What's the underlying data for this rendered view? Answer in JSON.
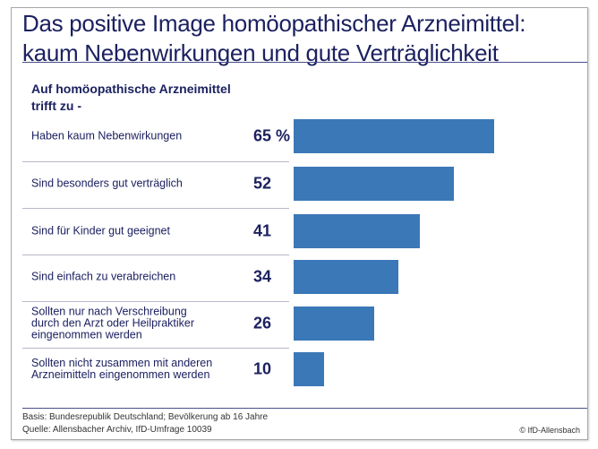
{
  "chart_data": {
    "type": "bar",
    "orientation": "horizontal",
    "title": [
      "Das positive Image homöopathischer Arzneimittel:",
      "kaum Nebenwirkungen und gute Verträglichkeit"
    ],
    "subtitle": [
      "Auf homöopathische Arzneimittel",
      "trifft zu -"
    ],
    "categories": [
      [
        "Haben kaum Nebenwirkungen"
      ],
      [
        "Sind besonders gut verträglich"
      ],
      [
        "Sind für Kinder gut geeignet"
      ],
      [
        "Sind einfach zu verabreichen"
      ],
      [
        "Sollten nur nach Verschreibung",
        "durch den Arzt oder Heilpraktiker",
        "eingenommen werden"
      ],
      [
        "Sollten nicht zusammen mit anderen",
        "Arzneimitteln eingenommen werden"
      ]
    ],
    "values": [
      65,
      52,
      41,
      34,
      26,
      10
    ],
    "value_labels": [
      "65 %",
      "52",
      "41",
      "34",
      "26",
      "10"
    ],
    "unit": "%",
    "xlim": [
      0,
      65
    ],
    "grid": false,
    "bar_color": "#3b78b7"
  },
  "footer": {
    "basis": "Basis: Bundesrepublik Deutschland; Bevölkerung ab 16 Jahre",
    "source": "Quelle: Allensbacher Archiv, IfD-Umfrage 10039",
    "copyright": "© IfD-Allensbach"
  }
}
